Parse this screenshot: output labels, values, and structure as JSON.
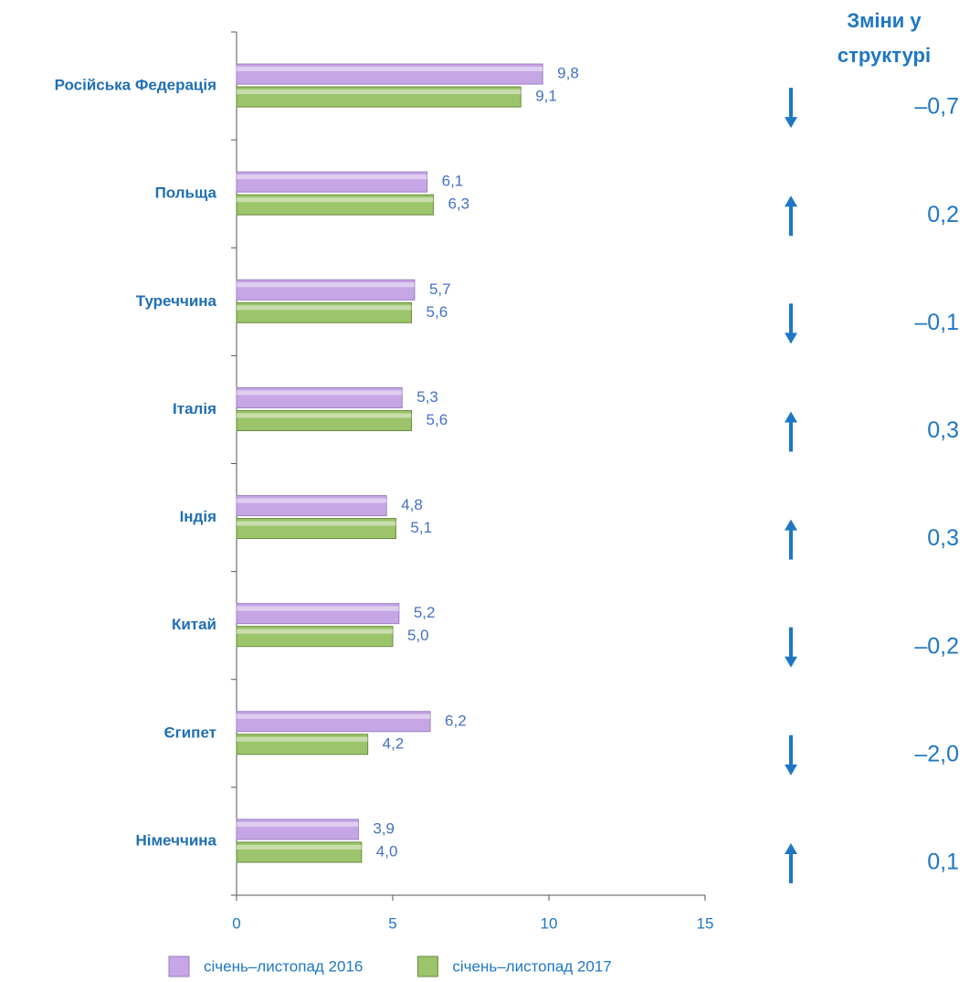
{
  "chart_data": {
    "type": "bar",
    "orientation": "horizontal",
    "categories": [
      "Російська Федерація",
      "Польща",
      "Туреччина",
      "Італія",
      "Індія",
      "Китай",
      "Єгипет",
      "Німеччина"
    ],
    "series": [
      {
        "name": "січень–листопад 2016",
        "color": "#c7a6e6",
        "values": [
          9.8,
          6.1,
          5.7,
          5.3,
          4.8,
          5.2,
          6.2,
          3.9
        ],
        "value_labels": [
          "9,8",
          "6,1",
          "5,7",
          "5,3",
          "4,8",
          "5,2",
          "6,2",
          "3,9"
        ]
      },
      {
        "name": "січень–листопад 2017",
        "color": "#9cc46a",
        "values": [
          9.1,
          6.3,
          5.6,
          5.6,
          5.1,
          5.0,
          4.2,
          4.0
        ],
        "value_labels": [
          "9,1",
          "6,3",
          "5,6",
          "5,6",
          "5,1",
          "5,0",
          "4,2",
          "4,0"
        ]
      }
    ],
    "xlim": [
      0,
      15
    ],
    "xticks": [
      0,
      5,
      10,
      15
    ],
    "legend": "bottom",
    "changes": {
      "title": "Зміни у структурі",
      "values": [
        -0.7,
        0.2,
        -0.1,
        0.3,
        0.3,
        -0.2,
        -2.0,
        0.1
      ],
      "value_labels": [
        "–0,7",
        "0,2",
        "–0,1",
        "0,3",
        "0,3",
        "–0,2",
        "–2,0",
        "0,1"
      ],
      "color": "#1f77c4"
    }
  }
}
